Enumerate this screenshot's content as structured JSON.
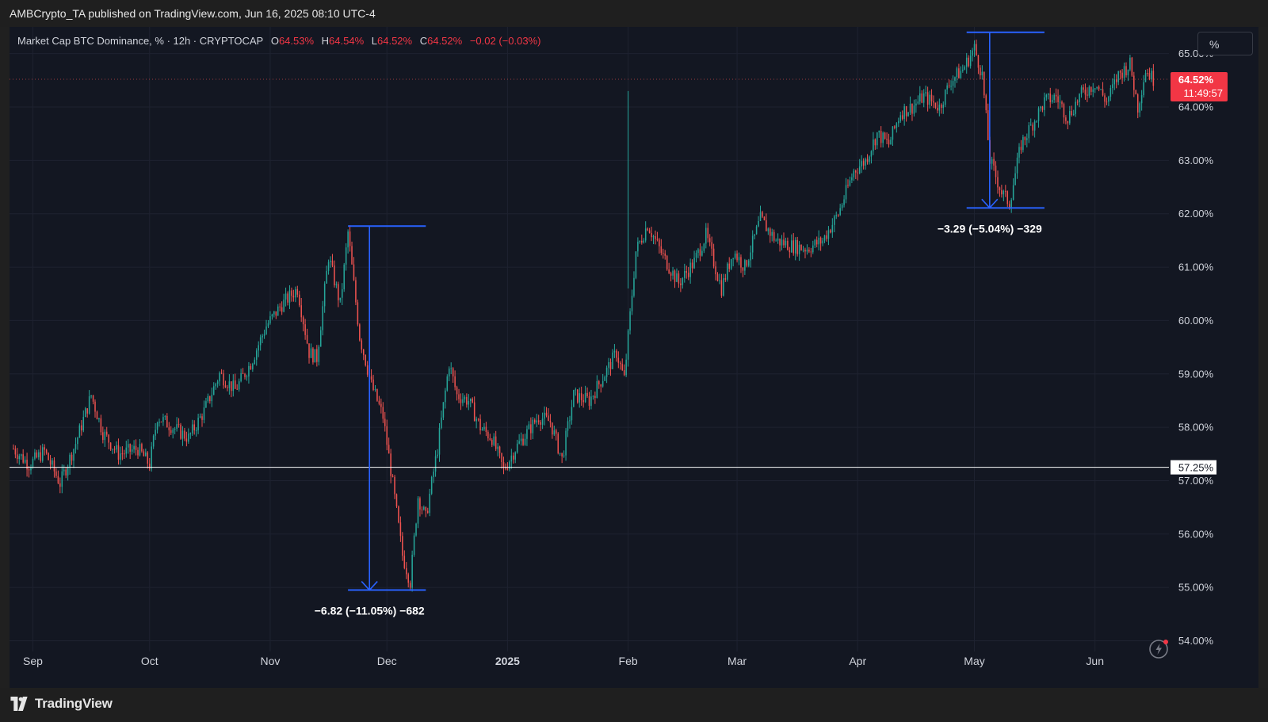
{
  "header": {
    "published": "AMBCrypto_TA published on TradingView.com, Jun 16, 2025 08:10 UTC-4"
  },
  "legend": {
    "symbol": "Market Cap BTC Dominance, % · 12h · CRYPTOCAP",
    "open_label": "O",
    "open": "64.53%",
    "high_label": "H",
    "high": "64.54%",
    "low_label": "L",
    "low": "64.52%",
    "close_label": "C",
    "close": "64.52%",
    "change": "−0.02 (−0.03%)"
  },
  "scale_button": "%",
  "footer": {
    "brand": "TradingView"
  },
  "colors": {
    "background": "#131722",
    "up": "#26a69a",
    "down": "#ef5350",
    "annotation": "#2962ff",
    "price_tag": "#f23645"
  },
  "chart_data": {
    "type": "candlestick",
    "title": "Market Cap BTC Dominance, %",
    "timeframe": "12h",
    "ylim": [
      53.8,
      65.5
    ],
    "y_ticks": [
      "54.00%",
      "55.00%",
      "56.00%",
      "57.00%",
      "58.00%",
      "59.00%",
      "60.00%",
      "61.00%",
      "62.00%",
      "63.00%",
      "64.00%",
      "65.00%"
    ],
    "x_ticks": [
      "Sep",
      "Oct",
      "Nov",
      "Dec",
      "2025",
      "Feb",
      "Mar",
      "Apr",
      "May",
      "Jun"
    ],
    "x_range": [
      "2024-08-26",
      "2025-06-20"
    ],
    "grid": true,
    "series": [
      {
        "name": "BTC Dominance",
        "points": [
          [
            "2024-08-27",
            57.6
          ],
          [
            "2024-08-31",
            57.3
          ],
          [
            "2024-09-04",
            57.55
          ],
          [
            "2024-09-08",
            56.95
          ],
          [
            "2024-09-12",
            57.7
          ],
          [
            "2024-09-16",
            58.6
          ],
          [
            "2024-09-19",
            57.9
          ],
          [
            "2024-09-23",
            57.5
          ],
          [
            "2024-09-28",
            57.6
          ],
          [
            "2024-10-01",
            57.3
          ],
          [
            "2024-10-03",
            58.2
          ],
          [
            "2024-10-07",
            58.0
          ],
          [
            "2024-10-11",
            57.8
          ],
          [
            "2024-10-15",
            58.3
          ],
          [
            "2024-10-19",
            59.0
          ],
          [
            "2024-10-23",
            58.7
          ],
          [
            "2024-10-27",
            59.2
          ],
          [
            "2024-10-31",
            59.9
          ],
          [
            "2024-11-04",
            60.3
          ],
          [
            "2024-11-08",
            60.6
          ],
          [
            "2024-11-11",
            59.4
          ],
          [
            "2024-11-13",
            59.3
          ],
          [
            "2024-11-16",
            61.2
          ],
          [
            "2024-11-19",
            60.3
          ],
          [
            "2024-11-21",
            61.65
          ],
          [
            "2024-11-24",
            59.7
          ],
          [
            "2024-11-27",
            58.8
          ],
          [
            "2024-11-30",
            58.2
          ],
          [
            "2024-12-02",
            57.2
          ],
          [
            "2024-12-05",
            55.6
          ],
          [
            "2024-12-07",
            55.1
          ],
          [
            "2024-12-09",
            56.7
          ],
          [
            "2024-12-11",
            56.3
          ],
          [
            "2024-12-14",
            57.6
          ],
          [
            "2024-12-17",
            59.2
          ],
          [
            "2024-12-19",
            58.6
          ],
          [
            "2024-12-22",
            58.5
          ],
          [
            "2024-12-25",
            58.0
          ],
          [
            "2024-12-28",
            57.8
          ],
          [
            "2024-12-31",
            57.2
          ],
          [
            "2025-01-03",
            57.6
          ],
          [
            "2025-01-06",
            57.9
          ],
          [
            "2025-01-09",
            58.2
          ],
          [
            "2025-01-12",
            58.1
          ],
          [
            "2025-01-15",
            57.4
          ],
          [
            "2025-01-18",
            58.6
          ],
          [
            "2025-01-22",
            58.5
          ],
          [
            "2025-01-26",
            59.0
          ],
          [
            "2025-01-29",
            59.4
          ],
          [
            "2025-01-31",
            58.9
          ],
          [
            "2025-02-03",
            61.3
          ],
          [
            "2025-02-06",
            61.8
          ],
          [
            "2025-02-10",
            61.2
          ],
          [
            "2025-02-14",
            60.7
          ],
          [
            "2025-02-18",
            61.1
          ],
          [
            "2025-02-21",
            61.6
          ],
          [
            "2025-02-25",
            60.6
          ],
          [
            "2025-02-28",
            61.3
          ],
          [
            "2025-03-03",
            61.0
          ],
          [
            "2025-03-07",
            61.9
          ],
          [
            "2025-03-11",
            61.5
          ],
          [
            "2025-03-15",
            61.4
          ],
          [
            "2025-03-19",
            61.35
          ],
          [
            "2025-03-23",
            61.5
          ],
          [
            "2025-03-27",
            62.0
          ],
          [
            "2025-03-31",
            62.8
          ],
          [
            "2025-04-03",
            63.0
          ],
          [
            "2025-04-06",
            63.5
          ],
          [
            "2025-04-09",
            63.3
          ],
          [
            "2025-04-12",
            63.9
          ],
          [
            "2025-04-15",
            64.0
          ],
          [
            "2025-04-18",
            64.2
          ],
          [
            "2025-04-22",
            64.0
          ],
          [
            "2025-04-25",
            64.5
          ],
          [
            "2025-04-28",
            64.7
          ],
          [
            "2025-05-01",
            65.1
          ],
          [
            "2025-05-03",
            64.6
          ],
          [
            "2025-05-05",
            63.0
          ],
          [
            "2025-05-08",
            62.4
          ],
          [
            "2025-05-10",
            62.2
          ],
          [
            "2025-05-13",
            63.3
          ],
          [
            "2025-05-16",
            63.7
          ],
          [
            "2025-05-19",
            64.1
          ],
          [
            "2025-05-22",
            64.2
          ],
          [
            "2025-05-25",
            63.8
          ],
          [
            "2025-05-28",
            64.2
          ],
          [
            "2025-06-01",
            64.45
          ],
          [
            "2025-06-04",
            64.1
          ],
          [
            "2025-06-07",
            64.6
          ],
          [
            "2025-06-10",
            64.8
          ],
          [
            "2025-06-12",
            64.0
          ],
          [
            "2025-06-14",
            64.7
          ],
          [
            "2025-06-16",
            64.52
          ]
        ]
      }
    ],
    "last_price": {
      "label": "64.52%",
      "countdown": "11:49:57",
      "value": 64.52
    },
    "horizontal_line": {
      "label": "57.25%",
      "value": 57.25
    },
    "measurements": [
      {
        "label": "−6.82 (−11.05%) −682",
        "from_date": "2024-11-21",
        "from_value": 61.77,
        "to_date": "2024-12-06",
        "to_value": 54.95,
        "start_date": "2024-11-21",
        "end_date": "2024-12-11"
      },
      {
        "label": "−3.29 (−5.04%) −329",
        "from_date": "2025-05-01",
        "from_value": 65.4,
        "to_date": "2025-05-11",
        "to_value": 62.11,
        "start_date": "2025-04-29",
        "end_date": "2025-05-19"
      }
    ]
  }
}
